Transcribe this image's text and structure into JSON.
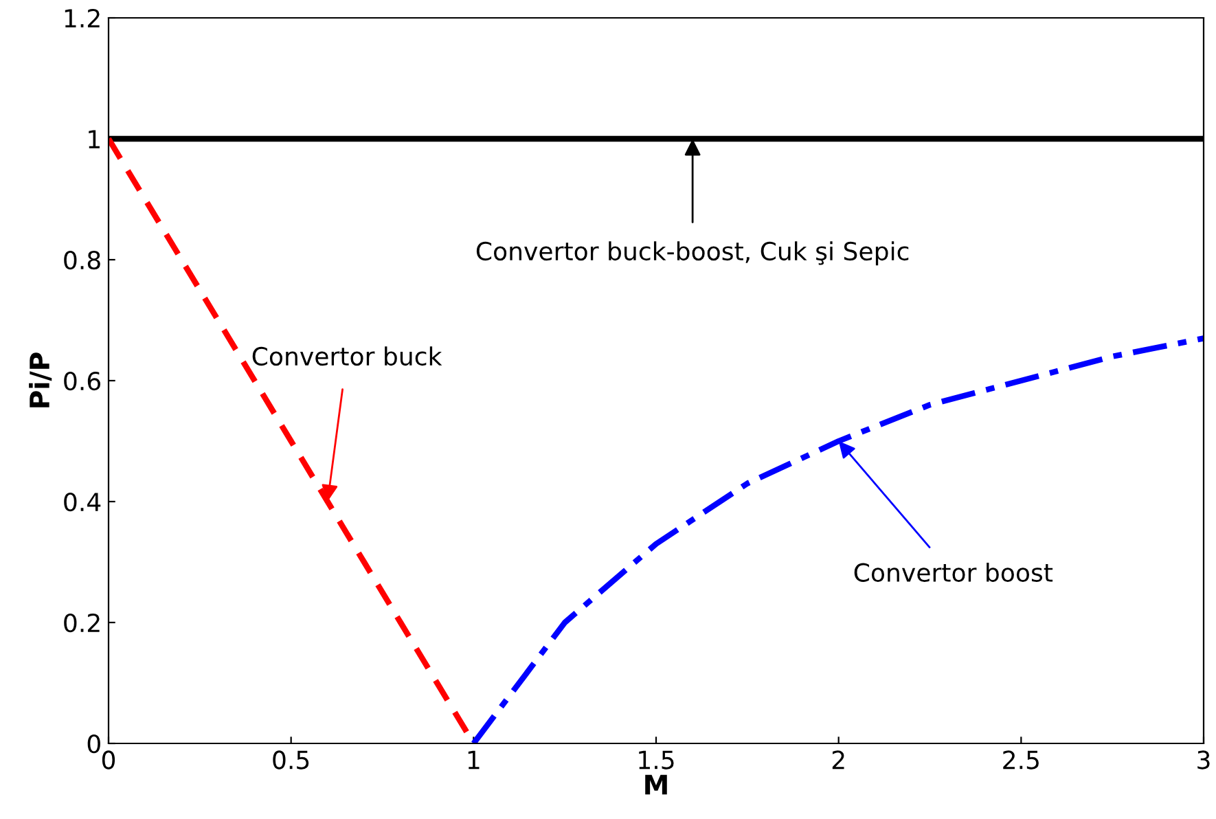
{
  "chart_data": {
    "type": "line",
    "xlabel": "M",
    "ylabel": "Pi/P",
    "xlim": [
      0,
      3
    ],
    "ylim": [
      0,
      1.2
    ],
    "xticks": [
      0,
      0.5,
      1,
      1.5,
      2,
      2.5,
      3
    ],
    "yticks": [
      0,
      0.2,
      0.4,
      0.6,
      0.8,
      1,
      1.2
    ],
    "grid": false,
    "legend": false,
    "marker": "none",
    "series": [
      {
        "color": "#000000",
        "line_style": "solid",
        "x": [
          0,
          3
        ],
        "values": [
          1,
          1
        ]
      },
      {
        "color": "#ff0000",
        "line_style": "dashed",
        "x": [
          0,
          0.1,
          0.2,
          0.3,
          0.4,
          0.5,
          0.6,
          0.7,
          0.8,
          0.9,
          1
        ],
        "values": [
          1,
          0.9,
          0.8,
          0.7,
          0.6,
          0.5,
          0.4,
          0.3,
          0.2,
          0.1,
          0
        ]
      },
      {
        "color": "#0000ff",
        "line_style": "dashdot",
        "x": [
          1,
          1.25,
          1.5,
          1.75,
          2,
          2.25,
          2.5,
          2.75,
          3
        ],
        "values": [
          0,
          0.2,
          0.33,
          0.43,
          0.5,
          0.56,
          0.6,
          0.64,
          0.67
        ]
      }
    ],
    "annotations": [
      {
        "text": "Convertor buck-boost, Cuk şi Sepic",
        "x": 1.6,
        "y": 1
      },
      {
        "text": "Convertor buck",
        "x": 0.6,
        "y": 0.4
      },
      {
        "text": "Convertor boost",
        "x": 2,
        "y": 0.5
      }
    ]
  }
}
